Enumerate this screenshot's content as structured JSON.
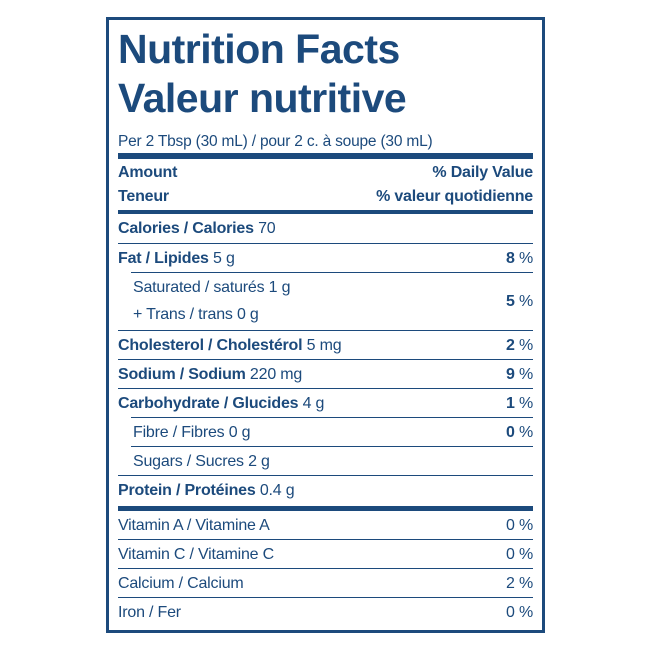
{
  "header": {
    "title_en": "Nutrition Facts",
    "title_fr": "Valeur nutritive",
    "serving": "Per 2 Tbsp (30 mL) / pour 2 c. à soupe (30 mL)"
  },
  "columns": {
    "amount_en": "Amount",
    "amount_fr": "Teneur",
    "dv_en": "% Daily Value",
    "dv_fr": "% valeur quotidienne"
  },
  "nutrients": [
    {
      "name": "Calories / Calories",
      "amount": "70"
    },
    {
      "name": "Fat / Lipides",
      "amount": "5 g",
      "dv": "8",
      "unit": "%"
    },
    {
      "name": "Saturated / saturés",
      "amount": "1 g",
      "dv": "5",
      "unit": "%",
      "sub": true,
      "extra_line": {
        "name": "+ Trans / trans",
        "amount": "0 g"
      }
    },
    {
      "name": "Cholesterol / Cholestérol",
      "amount": "5 mg",
      "dv": "2",
      "unit": "%"
    },
    {
      "name": "Sodium / Sodium",
      "amount": "220 mg",
      "dv": "9",
      "unit": "%"
    },
    {
      "name": "Carbohydrate / Glucides",
      "amount": "4 g",
      "dv": "1",
      "unit": "%"
    },
    {
      "name": "Fibre / Fibres",
      "amount": "0 g",
      "dv": "0",
      "unit": "%",
      "sub": true
    },
    {
      "name": "Sugars / Sucres",
      "amount": "2 g",
      "sub": true
    },
    {
      "name": "Protein / Protéines",
      "amount": "0.4 g"
    }
  ],
  "vitamins": [
    {
      "name": "Vitamin A / Vitamine A",
      "dv": "0",
      "unit": "%"
    },
    {
      "name": "Vitamin C / Vitamine C",
      "dv": "0",
      "unit": "%"
    },
    {
      "name": "Calcium / Calcium",
      "dv": "2",
      "unit": "%"
    },
    {
      "name": "Iron / Fer",
      "dv": "0",
      "unit": "%"
    }
  ]
}
